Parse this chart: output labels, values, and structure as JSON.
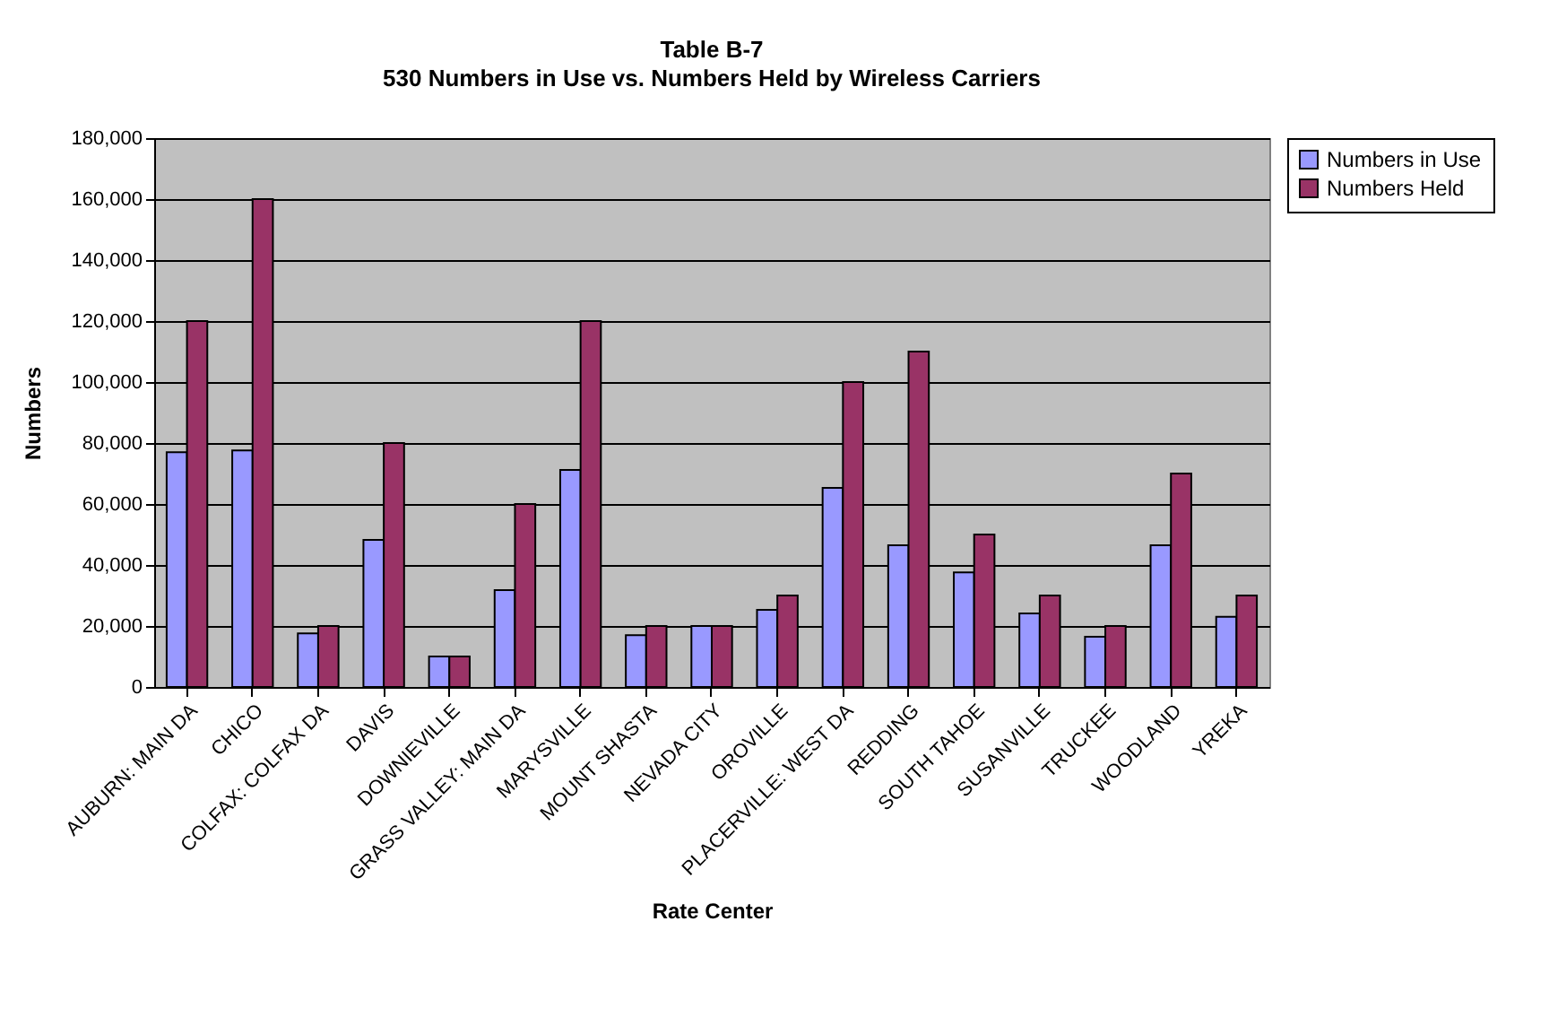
{
  "chart_data": {
    "type": "bar",
    "title": "Table B-7",
    "subtitle": "530 Numbers in Use vs. Numbers Held by Wireless Carriers",
    "xlabel": "Rate Center",
    "ylabel": "Numbers",
    "categories": [
      "AUBURN: MAIN DA",
      "CHICO",
      "COLFAX: COLFAX DA",
      "DAVIS",
      "DOWNIEVILLE",
      "GRASS VALLEY: MAIN DA",
      "MARYSVILLE",
      "MOUNT SHASTA",
      "NEVADA CITY",
      "OROVILLE",
      "PLACERVILLE: WEST DA",
      "REDDING",
      "SOUTH TAHOE",
      "SUSANVILLE",
      "TRUCKEE",
      "WOODLAND",
      "YREKA"
    ],
    "series": [
      {
        "name": "Numbers in Use",
        "color": "#9999ff",
        "values": [
          77000,
          77600,
          17600,
          48200,
          10000,
          31800,
          71200,
          17000,
          20000,
          25300,
          65300,
          46500,
          37600,
          24100,
          16500,
          46500,
          23000
        ]
      },
      {
        "name": "Numbers Held",
        "color": "#993366",
        "values": [
          120000,
          160000,
          20000,
          80000,
          10000,
          60000,
          120000,
          20000,
          20000,
          30000,
          100000,
          110000,
          50000,
          30000,
          20000,
          70000,
          30000
        ]
      }
    ],
    "ylim": [
      0,
      180000
    ],
    "yticks": [
      0,
      {
        "value": 20000,
        "label": "20,000"
      },
      {
        "value": 40000,
        "label": "40,000"
      },
      {
        "value": 60000,
        "label": "60,000"
      },
      {
        "value": 80000,
        "label": "80,000"
      },
      {
        "value": 100000,
        "label": "100,000"
      },
      {
        "value": 120000,
        "label": "120,000"
      },
      {
        "value": 140000,
        "label": "140,000"
      },
      {
        "value": 160000,
        "label": "160,000"
      },
      {
        "value": 180000,
        "label": "180,000"
      }
    ],
    "grid": "y",
    "legend": "right"
  }
}
